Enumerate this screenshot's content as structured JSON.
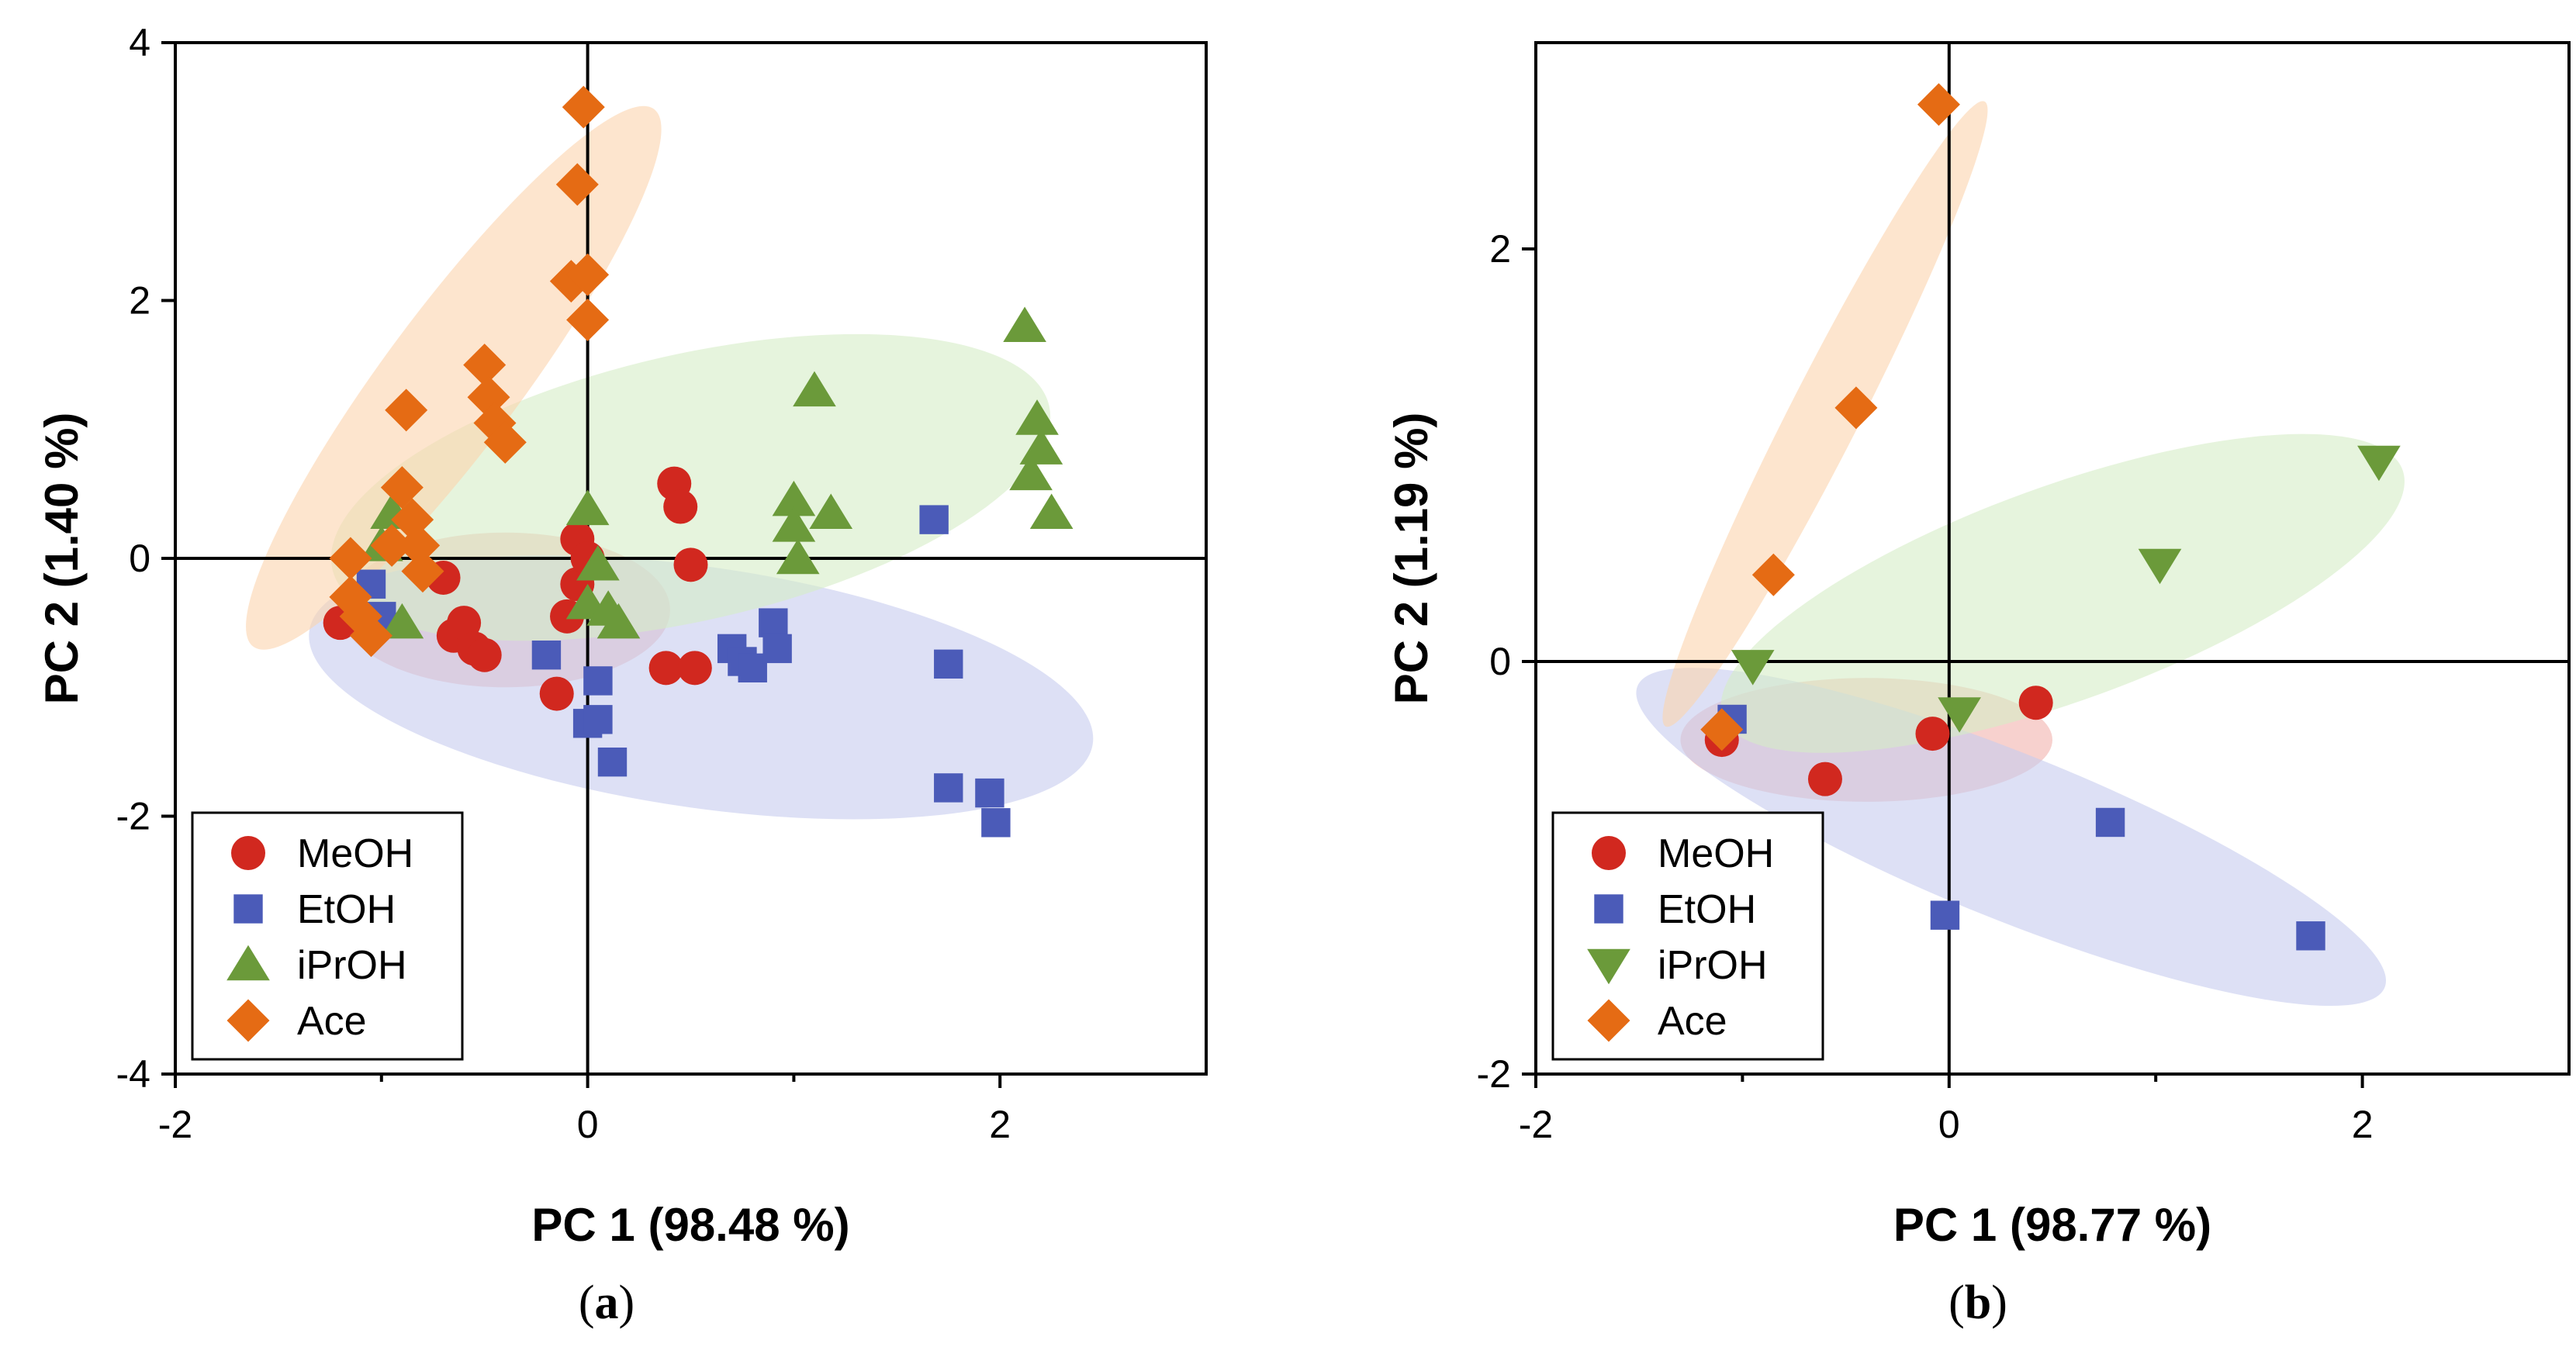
{
  "chart_data": [
    {
      "type": "scatter",
      "panel_label": "a",
      "xlabel": "PC 1 (98.48 %)",
      "ylabel": "PC 2 (1.40 %)",
      "xlim": [
        -2,
        3
      ],
      "ylim": [
        -4,
        4
      ],
      "xticks": [
        -2,
        0,
        2
      ],
      "yticks": [
        -4,
        -2,
        0,
        2,
        4
      ],
      "grid": false,
      "legend_position": "bottom-left",
      "series": [
        {
          "name": "MeOH",
          "marker": "circle",
          "color": "#d1281f",
          "ellipse": {
            "center": [
              -0.4,
              -0.4
            ],
            "semi_axes": [
              0.8,
              0.6
            ],
            "angle_deg": 0,
            "color": "#f2b3ad"
          },
          "points": [
            [
              -1.2,
              -0.5
            ],
            [
              -0.7,
              -0.15
            ],
            [
              -0.65,
              -0.6
            ],
            [
              -0.6,
              -0.5
            ],
            [
              -0.55,
              -0.7
            ],
            [
              -0.5,
              -0.75
            ],
            [
              -0.15,
              -1.05
            ],
            [
              -0.1,
              -0.45
            ],
            [
              -0.05,
              0.15
            ],
            [
              -0.05,
              -0.2
            ],
            [
              0.0,
              0.0
            ],
            [
              0.38,
              -0.85
            ],
            [
              0.42,
              0.58
            ],
            [
              0.45,
              0.4
            ],
            [
              0.5,
              -0.05
            ],
            [
              0.52,
              -0.85
            ]
          ]
        },
        {
          "name": "EtOH",
          "marker": "square",
          "color": "#4b5bb8",
          "ellipse": {
            "center": [
              0.55,
              -1.0
            ],
            "semi_axes": [
              1.95,
              0.9
            ],
            "angle_deg": -13,
            "color": "#c7cbef"
          },
          "points": [
            [
              -1.05,
              -0.2
            ],
            [
              -1.0,
              -0.45
            ],
            [
              -0.2,
              -0.75
            ],
            [
              0.0,
              -1.28
            ],
            [
              0.05,
              -0.95
            ],
            [
              0.05,
              -1.25
            ],
            [
              0.12,
              -1.58
            ],
            [
              0.7,
              -0.7
            ],
            [
              0.75,
              -0.8
            ],
            [
              0.8,
              -0.85
            ],
            [
              0.9,
              -0.5
            ],
            [
              0.92,
              -0.7
            ],
            [
              1.68,
              0.3
            ],
            [
              1.75,
              -0.82
            ],
            [
              1.75,
              -1.78
            ],
            [
              1.95,
              -1.82
            ],
            [
              1.98,
              -2.05
            ]
          ]
        },
        {
          "name": "iPrOH",
          "marker": "triangle-up",
          "color": "#6b9a3a",
          "ellipse": {
            "center": [
              0.5,
              0.55
            ],
            "semi_axes": [
              1.85,
              0.95
            ],
            "angle_deg": 20,
            "color": "#d6ecc7"
          },
          "points": [
            [
              -1.0,
              0.1
            ],
            [
              -0.95,
              0.35
            ],
            [
              -0.9,
              -0.5
            ],
            [
              0.0,
              0.38
            ],
            [
              0.0,
              -0.35
            ],
            [
              0.05,
              -0.05
            ],
            [
              0.1,
              -0.4
            ],
            [
              0.15,
              -0.5
            ],
            [
              1.0,
              0.45
            ],
            [
              1.0,
              0.25
            ],
            [
              1.02,
              0.0
            ],
            [
              1.1,
              1.3
            ],
            [
              1.18,
              0.35
            ],
            [
              2.12,
              1.8
            ],
            [
              2.15,
              0.65
            ],
            [
              2.18,
              1.08
            ],
            [
              2.2,
              0.85
            ],
            [
              2.25,
              0.35
            ]
          ]
        },
        {
          "name": "Ace",
          "marker": "diamond",
          "color": "#e56b14",
          "ellipse": {
            "center": [
              -0.65,
              1.4
            ],
            "semi_axes": [
              2.3,
              0.35
            ],
            "angle_deg": 65,
            "color": "#fbd4ad"
          },
          "points": [
            [
              -1.15,
              0.0
            ],
            [
              -1.15,
              -0.3
            ],
            [
              -1.1,
              -0.45
            ],
            [
              -1.05,
              -0.6
            ],
            [
              -0.95,
              0.1
            ],
            [
              -0.9,
              0.55
            ],
            [
              -0.88,
              1.15
            ],
            [
              -0.85,
              0.3
            ],
            [
              -0.82,
              0.1
            ],
            [
              -0.8,
              -0.1
            ],
            [
              -0.5,
              1.5
            ],
            [
              -0.48,
              1.25
            ],
            [
              -0.45,
              1.05
            ],
            [
              -0.4,
              0.9
            ],
            [
              -0.08,
              2.15
            ],
            [
              -0.05,
              2.9
            ],
            [
              -0.02,
              3.5
            ],
            [
              0.0,
              2.2
            ],
            [
              0.0,
              1.85
            ]
          ]
        }
      ]
    },
    {
      "type": "scatter",
      "panel_label": "b",
      "xlabel": "PC 1 (98.77 %)",
      "ylabel": "PC 2 (1.19 %)",
      "xlim": [
        -2,
        3
      ],
      "ylim": [
        -2,
        3
      ],
      "xticks": [
        -2,
        0,
        2
      ],
      "yticks": [
        -2,
        0,
        2
      ],
      "grid": false,
      "legend_position": "bottom-left",
      "series": [
        {
          "name": "MeOH",
          "marker": "circle",
          "color": "#d1281f",
          "ellipse": {
            "center": [
              -0.4,
              -0.38
            ],
            "semi_axes": [
              0.9,
              0.3
            ],
            "angle_deg": 0,
            "color": "#f2b3ad"
          },
          "points": [
            [
              -1.1,
              -0.38
            ],
            [
              -0.6,
              -0.57
            ],
            [
              -0.08,
              -0.35
            ],
            [
              0.42,
              -0.2
            ]
          ]
        },
        {
          "name": "EtOH",
          "marker": "square",
          "color": "#4b5bb8",
          "ellipse": {
            "center": [
              0.3,
              -0.85
            ],
            "semi_axes": [
              1.95,
              0.4
            ],
            "angle_deg": -22,
            "color": "#c7cbef"
          },
          "points": [
            [
              -1.05,
              -0.28
            ],
            [
              -0.02,
              -1.23
            ],
            [
              0.78,
              -0.78
            ],
            [
              1.75,
              -1.33
            ]
          ]
        },
        {
          "name": "iPrOH",
          "marker": "triangle-down",
          "color": "#6b9a3a",
          "ellipse": {
            "center": [
              0.55,
              0.33
            ],
            "semi_axes": [
              1.75,
              0.52
            ],
            "angle_deg": 20,
            "color": "#d6ecc7"
          },
          "points": [
            [
              -0.95,
              -0.02
            ],
            [
              0.05,
              -0.25
            ],
            [
              1.02,
              0.47
            ],
            [
              2.08,
              0.97
            ]
          ]
        },
        {
          "name": "Ace",
          "marker": "diamond",
          "color": "#e56b14",
          "ellipse": {
            "center": [
              -0.6,
              1.2
            ],
            "semi_axes": [
              1.7,
              0.17
            ],
            "angle_deg": 63,
            "color": "#fbd4ad"
          },
          "points": [
            [
              -1.1,
              -0.33
            ],
            [
              -0.85,
              0.42
            ],
            [
              -0.45,
              1.23
            ],
            [
              -0.05,
              2.7
            ]
          ]
        }
      ]
    }
  ]
}
